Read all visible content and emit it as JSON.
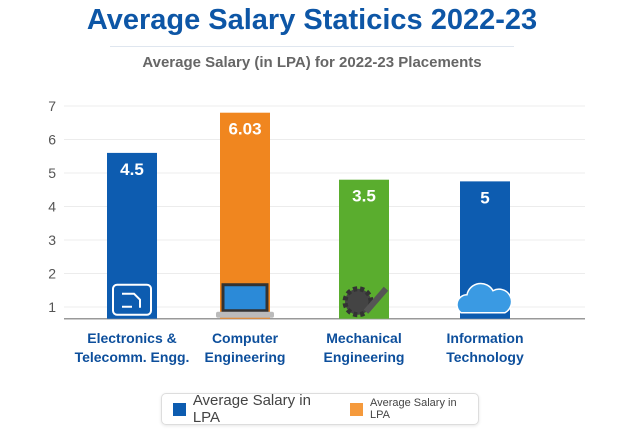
{
  "chart_data": {
    "type": "bar",
    "title": "Average Salary Staticics 2022-23",
    "subtitle": "Average Salary (in LPA) for 2022-23 Placements",
    "categories": [
      [
        "Electronics &",
        "Telecomm. Engg."
      ],
      [
        "Computer",
        "Engineering"
      ],
      [
        "Mechanical",
        "Engineering"
      ],
      [
        "Information",
        "Technology"
      ]
    ],
    "values": [
      4.5,
      6.03,
      3.5,
      5
    ],
    "value_labels": [
      "4.5",
      "6.03",
      "3.5",
      "5"
    ],
    "plotted_heights": [
      5.6,
      6.8,
      4.8,
      4.75
    ],
    "icons": [
      "circuit-board-icon",
      "laptop-icon",
      "gears-wrench-icon",
      "cloud-network-icon"
    ],
    "colors": [
      "#0d5cb0",
      "#f0861f",
      "#5aad2e",
      "#0d5cb0"
    ],
    "yticks": [
      1,
      2,
      3,
      4,
      5,
      6,
      7
    ],
    "ylim": [
      0.65,
      7
    ],
    "grid": true,
    "legend": [
      {
        "label": "Average Salary in LPA",
        "color": "#0d5cb0"
      },
      {
        "label": "Average Salary in LPA",
        "color": "#f59a3c"
      }
    ],
    "legend_position": "bottom"
  }
}
